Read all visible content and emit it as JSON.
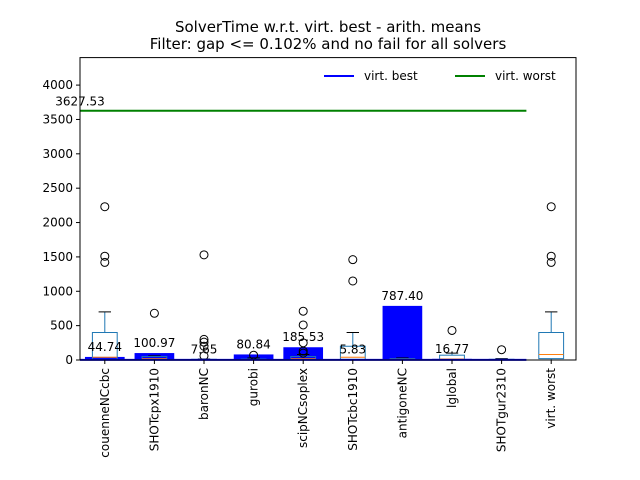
{
  "chart_data": {
    "type": "bar",
    "title": "SolverTime w.r.t. virt. best - arith. means",
    "subtitle": "Filter: gap <= 0.102% and no fail for all solvers",
    "xlabel": "",
    "ylabel": "",
    "ylim": [
      0,
      4400
    ],
    "yticks": [
      0,
      500,
      1000,
      1500,
      2000,
      2500,
      3000,
      3500,
      4000
    ],
    "grid": false,
    "legend_position": "top-right",
    "categories": [
      "couenneNCcbc",
      "SHOTcpx1910",
      "baronNC",
      "gurobi",
      "scipNCsoplex",
      "SHOTcbc1910",
      "antigoneNC",
      "lglobal",
      "SHOTgur2310",
      "virt. worst"
    ],
    "series": [
      {
        "kind": "bar",
        "color": "#0000ff",
        "values": [
          44.74,
          100.97,
          7.65,
          80.84,
          185.53,
          5.83,
          787.4,
          16.77,
          null,
          null
        ],
        "labels": [
          "44.74",
          "100.97",
          "7.65",
          "80.84",
          "185.53",
          "5.83",
          "787.40",
          "16.77",
          "",
          ""
        ]
      },
      {
        "name": "virt. best",
        "kind": "hline",
        "color": "#0000ff",
        "value": 1,
        "label": ""
      },
      {
        "name": "virt. worst",
        "kind": "hline",
        "color": "#008000",
        "value": 3627.53,
        "label": "3627.53"
      }
    ],
    "boxplots": [
      {
        "q1": 10,
        "median": 40,
        "q3": 400,
        "whisker_low": 0,
        "whisker_high": 700,
        "outliers": [
          1420,
          1510,
          2230
        ]
      },
      {
        "q1": 5,
        "median": 20,
        "q3": 50,
        "whisker_low": 0,
        "whisker_high": 60,
        "outliers": [
          680
        ]
      },
      {
        "q1": 2,
        "median": 5,
        "q3": 10,
        "whisker_low": 0,
        "whisker_high": 15,
        "outliers": [
          60,
          200,
          260,
          300,
          1530
        ]
      },
      {
        "q1": 2,
        "median": 5,
        "q3": 15,
        "whisker_low": 0,
        "whisker_high": 30,
        "outliers": [
          70
        ]
      },
      {
        "q1": 5,
        "median": 20,
        "q3": 50,
        "whisker_low": 0,
        "whisker_high": 80,
        "outliers": [
          100,
          130,
          250,
          510,
          710
        ]
      },
      {
        "q1": 10,
        "median": 40,
        "q3": 200,
        "whisker_low": 0,
        "whisker_high": 400,
        "outliers": [
          1150,
          1460
        ]
      },
      {
        "q1": 2,
        "median": 10,
        "q3": 20,
        "whisker_low": 0,
        "whisker_high": 30,
        "outliers": []
      },
      {
        "q1": 5,
        "median": 15,
        "q3": 70,
        "whisker_low": 0,
        "whisker_high": 100,
        "outliers": [
          430
        ]
      },
      {
        "q1": 1,
        "median": 5,
        "q3": 10,
        "whisker_low": 0,
        "whisker_high": 20,
        "outliers": [
          150
        ]
      },
      {
        "q1": 20,
        "median": 80,
        "q3": 400,
        "whisker_low": 0,
        "whisker_high": 700,
        "outliers": [
          1420,
          1510,
          2230
        ]
      }
    ]
  }
}
